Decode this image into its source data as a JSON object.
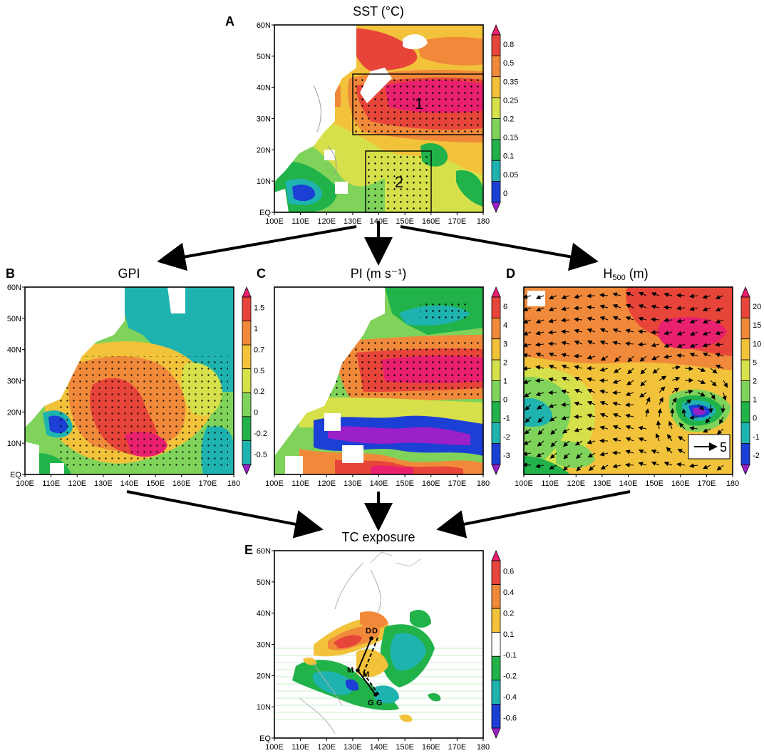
{
  "colors": {
    "c_neg3": "#9b20c8",
    "c_neg2": "#1c3fd6",
    "c_neg1": "#1fb3b0",
    "c_0": "#21b24a",
    "c_1": "#7fd35a",
    "c_2": "#d6e04a",
    "c_3": "#f2c23a",
    "c_4": "#f08a3a",
    "c_5": "#e8453a",
    "c_6": "#e8206e",
    "land": "#ffffff",
    "frame": "#000000",
    "dot": "#000000"
  },
  "axes": {
    "lon_ticks": [
      "100E",
      "110E",
      "120E",
      "130E",
      "140E",
      "150E",
      "160E",
      "170E",
      "180"
    ],
    "lat_ticks": [
      "EQ",
      "10N",
      "20N",
      "30N",
      "40N",
      "50N",
      "60N"
    ]
  },
  "panels": {
    "A": {
      "letter": "A",
      "title": "SST (°C)",
      "colorbar": [
        "0.8",
        "0.5",
        "0.35",
        "0.25",
        "0.2",
        "0.15",
        "0.1",
        "0.05",
        "0"
      ],
      "boxes": [
        {
          "label": "1",
          "lon": [
            130,
            180
          ],
          "lat": [
            25,
            44
          ]
        },
        {
          "label": "2",
          "lon": [
            135,
            160
          ],
          "lat": [
            0,
            20
          ]
        }
      ]
    },
    "B": {
      "letter": "B",
      "title": "GPI",
      "colorbar": [
        "1.5",
        "1",
        "0.7",
        "0.5",
        "0.2",
        "0",
        "-0.2",
        "-0.5"
      ]
    },
    "C": {
      "letter": "C",
      "title": "PI (m s⁻¹)",
      "colorbar": [
        "6",
        "4",
        "3",
        "2",
        "1",
        "0",
        "-1",
        "-2",
        "-3"
      ]
    },
    "D": {
      "letter": "D",
      "title": "H",
      "title_sub": "500",
      "title_unit": " (m)",
      "colorbar": [
        "20",
        "15",
        "10",
        "5",
        "2",
        "1",
        "0",
        "-1",
        "-2"
      ],
      "ref_vector_label": "5"
    },
    "E": {
      "letter": "E",
      "title": "TC exposure",
      "colorbar": [
        "0.6",
        "0.4",
        "0.2",
        "0.1",
        "-0.1",
        "-0.2",
        "-0.4",
        "-0.6"
      ],
      "track_labels": [
        "D",
        "D",
        "M",
        "M",
        "G",
        "G"
      ]
    }
  }
}
